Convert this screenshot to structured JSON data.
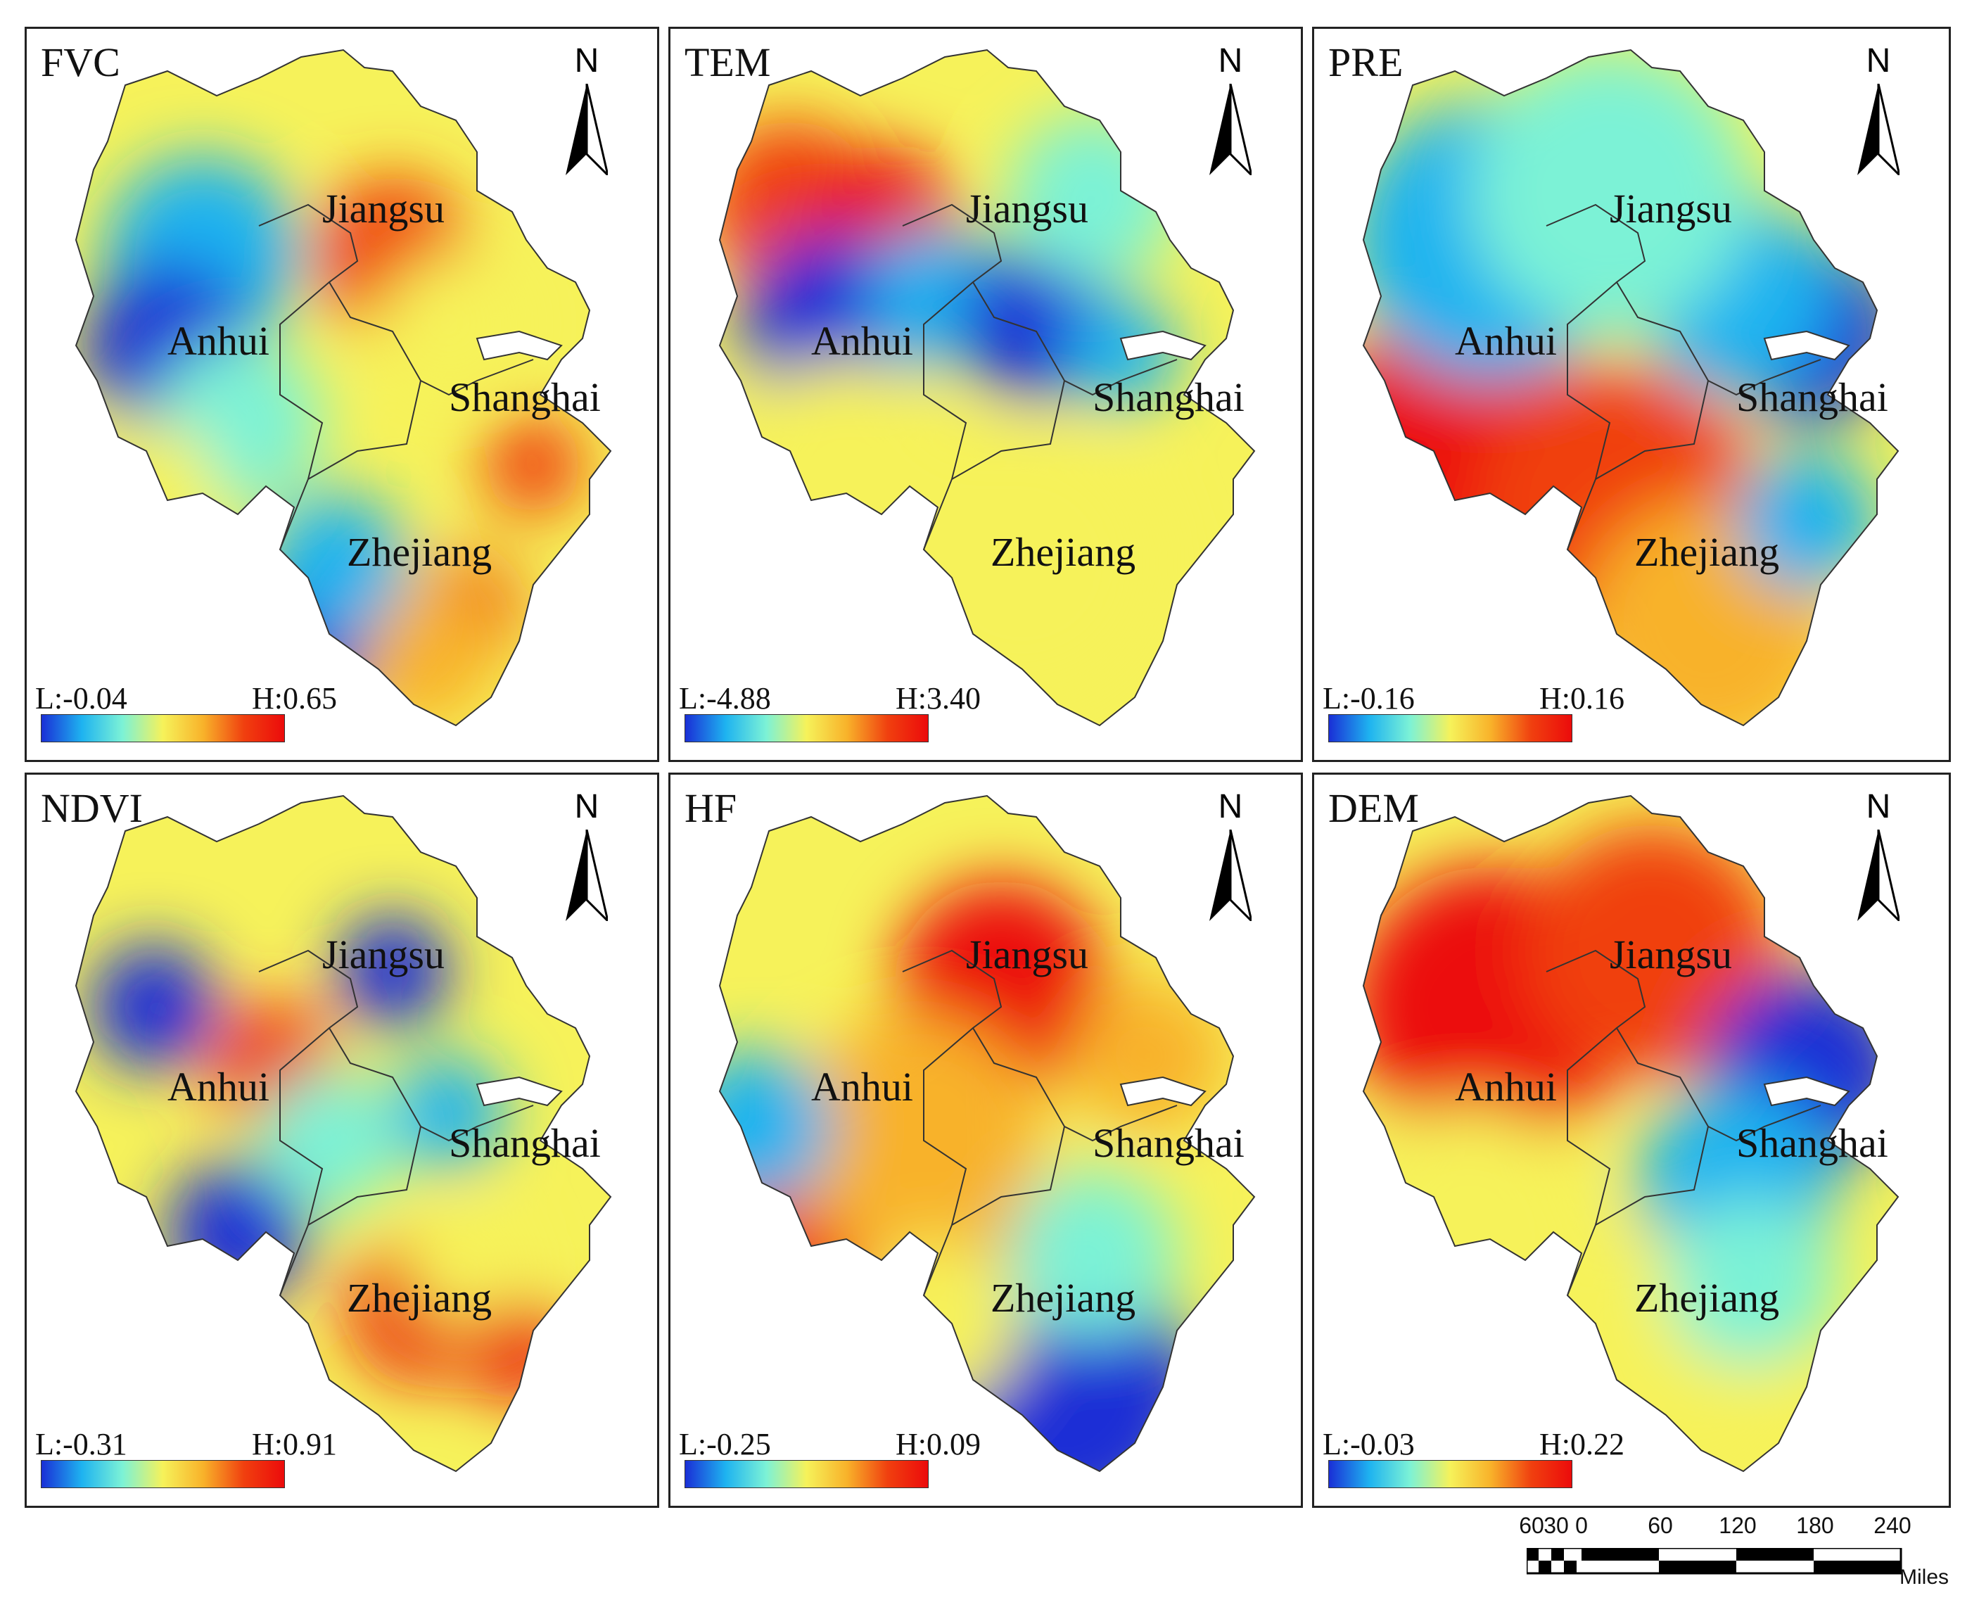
{
  "colors": {
    "ramp": [
      "#1a2fd6",
      "#1eb3f0",
      "#7cf2d6",
      "#f6f25a",
      "#f8b22a",
      "#f0400f",
      "#ec0b0b"
    ],
    "border": "#222222",
    "background": "#ffffff"
  },
  "north_label": "N",
  "provinces": [
    "Jiangsu",
    "Anhui",
    "Shanghai",
    "Zhejiang"
  ],
  "panels": [
    {
      "title": "FVC",
      "low": "L:-0.04",
      "high": "H:0.65"
    },
    {
      "title": "TEM",
      "low": "L:-4.88",
      "high": "H:3.40"
    },
    {
      "title": "PRE",
      "low": "L:-0.16",
      "high": "H:0.16"
    },
    {
      "title": "NDVI",
      "low": "L:-0.31",
      "high": "H:0.91"
    },
    {
      "title": "HF",
      "low": "L:-0.25",
      "high": "H:0.09"
    },
    {
      "title": "DEM",
      "low": "L:-0.03",
      "high": "H:0.22"
    }
  ],
  "scale": {
    "ticks": [
      "60",
      "30",
      "0",
      "60",
      "120",
      "180",
      "240"
    ],
    "units": "Miles"
  }
}
